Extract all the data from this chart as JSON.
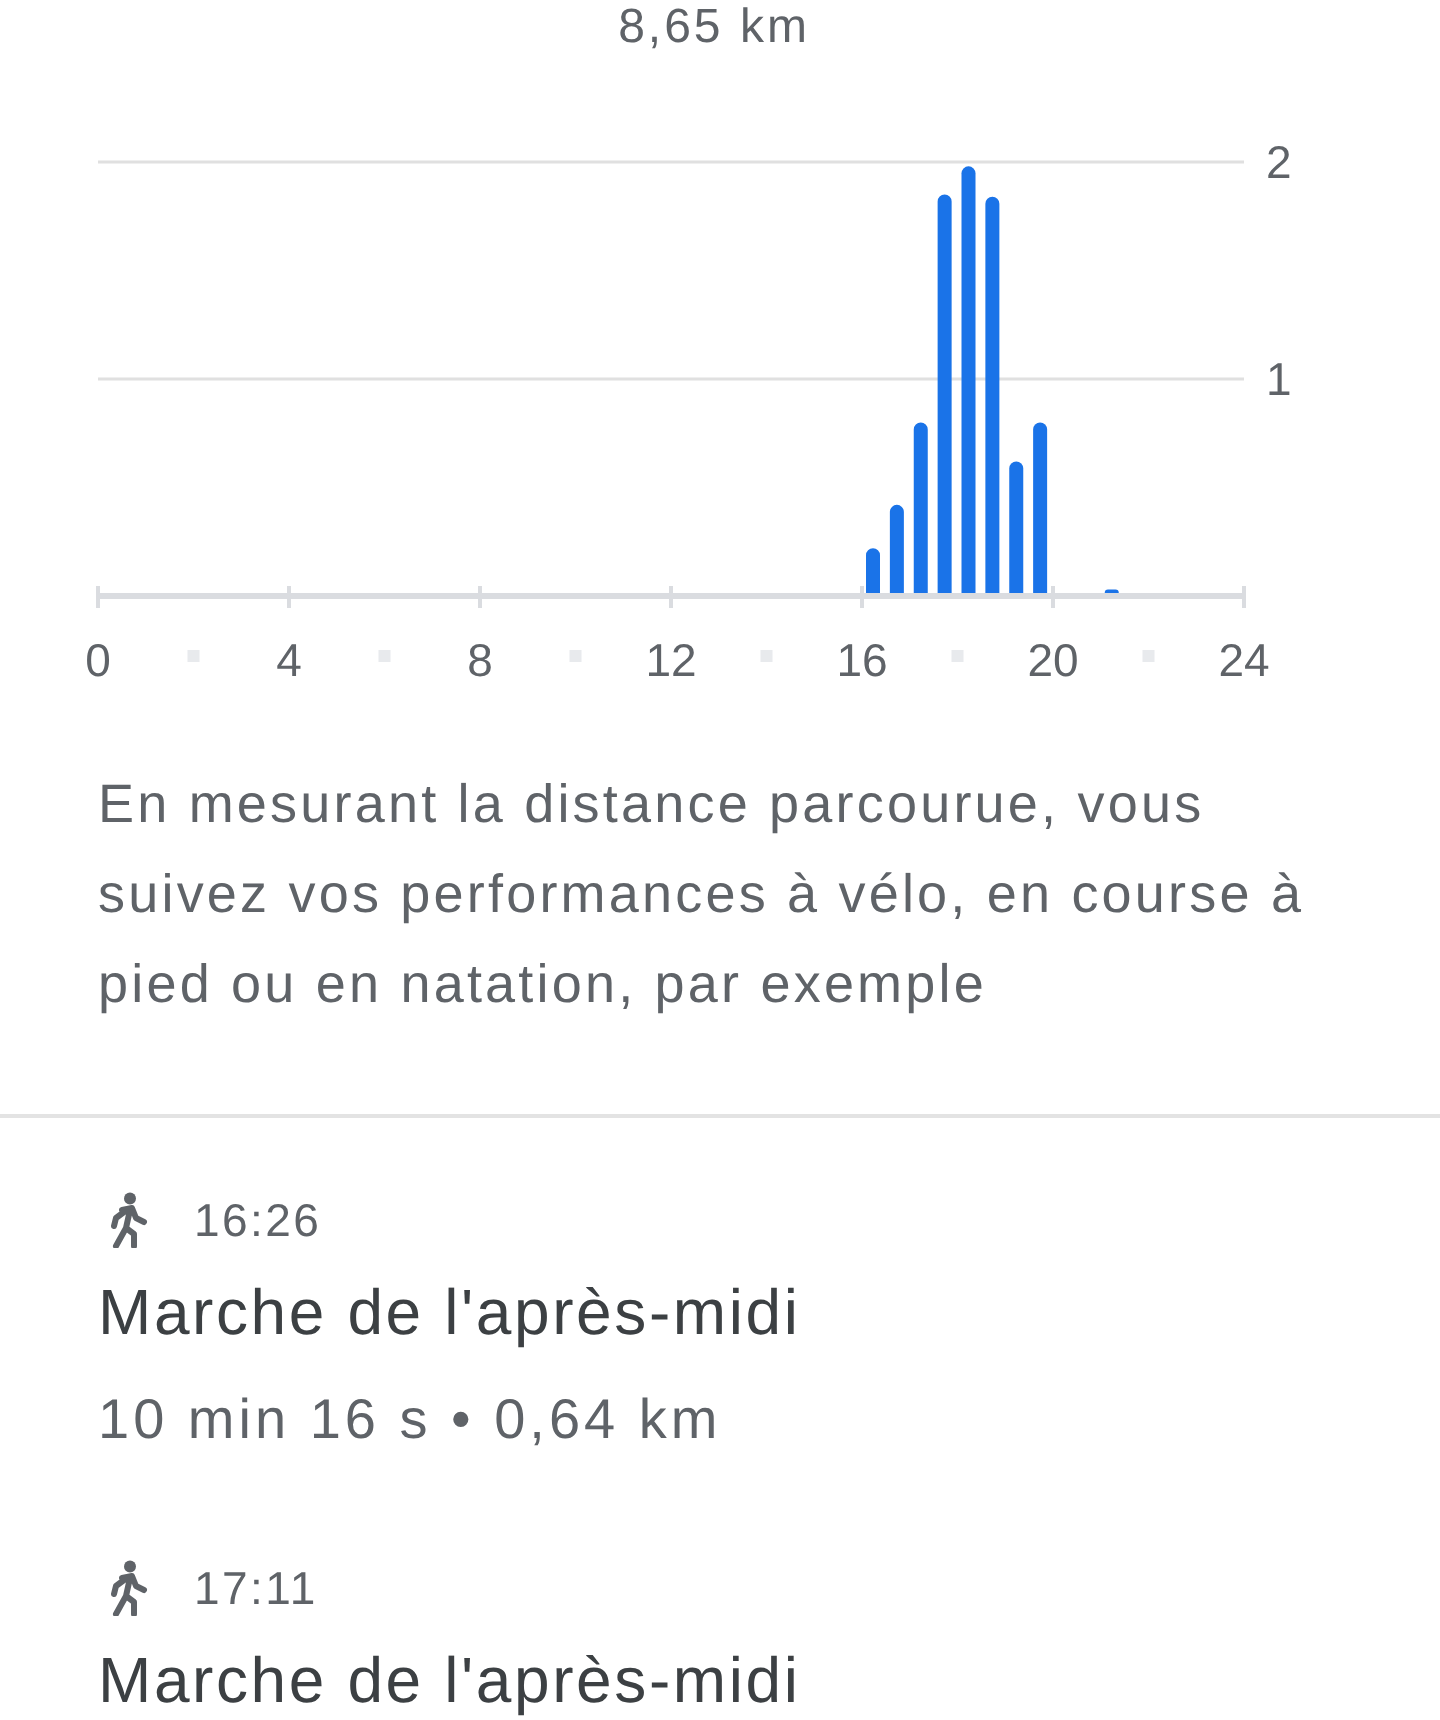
{
  "chart_data": {
    "type": "bar",
    "title": "8,65 km",
    "x": [
      16.25,
      16.75,
      17.25,
      17.75,
      18.25,
      18.75,
      19.25,
      19.75,
      21.25
    ],
    "values": [
      0.22,
      0.42,
      0.8,
      1.85,
      1.98,
      1.84,
      0.62,
      0.8,
      0.03
    ],
    "color": "#1a73e8",
    "xlim": [
      0,
      24
    ],
    "xticks": [
      0,
      4,
      8,
      12,
      16,
      20,
      24
    ],
    "ylim": [
      0,
      2
    ],
    "yticks": [
      1,
      2
    ],
    "grid": "y",
    "annotations": [
      "En mesurant la distance parcourue, vous suivez vos performances à vélo, en course à pied ou en natation, par exemple",
      "16:26",
      "Marche de l'après-midi",
      "10 min 16 s • 0,64 km",
      "17:11",
      "Marche de l'après-midi"
    ]
  }
}
